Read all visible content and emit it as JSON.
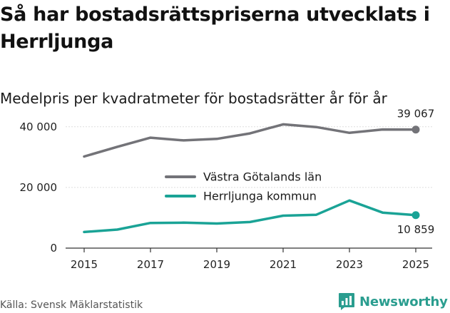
{
  "title": "Så har bostadsrättspriserna utvecklats i Herrljunga",
  "subtitle": "Medelpris per kvadratmeter för bostadsrätter år för år",
  "source": "Källa: Svensk Mäklarstatistik",
  "brand": "Newsworthy",
  "colors": {
    "series_vastra": "#737378",
    "series_herrljunga": "#1aa396",
    "grid": "#dddddd",
    "axis": "#333333",
    "brand": "#2a9d8f"
  },
  "chart_data": {
    "type": "line",
    "title": "Så har bostadsrättspriserna utvecklats i Herrljunga",
    "subtitle": "Medelpris per kvadratmeter för bostadsrätter år för år",
    "xlabel": "",
    "ylabel": "",
    "x": [
      2015,
      2016,
      2017,
      2018,
      2019,
      2020,
      2021,
      2022,
      2023,
      2024,
      2025
    ],
    "xticks": [
      "2015",
      "2017",
      "2019",
      "2021",
      "2023",
      "2025"
    ],
    "yticks": [
      "0",
      "20 000",
      "40 000"
    ],
    "ylim": [
      0,
      43000
    ],
    "grid": "horizontal",
    "legend_position": "center",
    "series": [
      {
        "name": "Västra Götalands län",
        "values": [
          30200,
          33400,
          36400,
          35500,
          36000,
          37800,
          40800,
          39900,
          38000,
          39100,
          39067
        ],
        "end_label": "39 067"
      },
      {
        "name": "Herrljunga kommun",
        "values": [
          5300,
          6100,
          8300,
          8400,
          8100,
          8600,
          10700,
          11000,
          15700,
          11700,
          10859
        ],
        "end_label": "10 859"
      }
    ]
  }
}
